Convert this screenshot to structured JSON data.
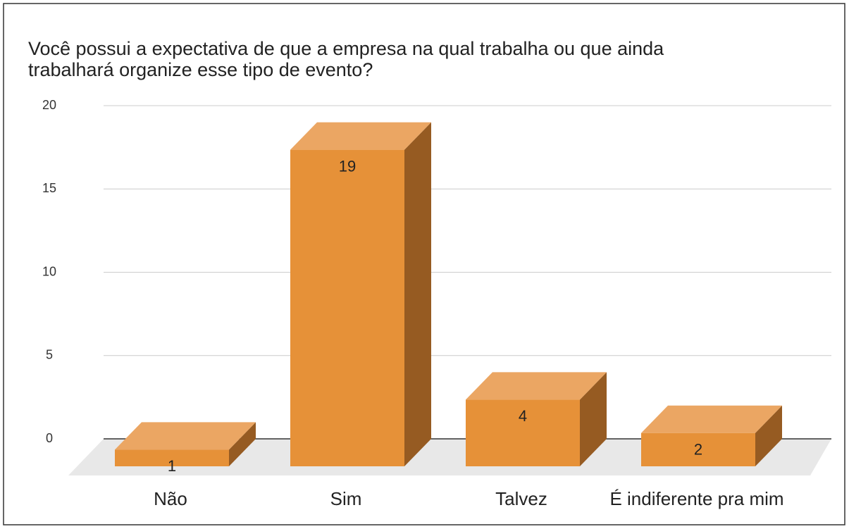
{
  "chart_data": {
    "type": "bar3d",
    "title": [
      "Você possui a expectativa de que a empresa na qual trabalha ou que ainda",
      "trabalhará organize esse tipo de evento?"
    ],
    "categories": [
      "Não",
      "Sim",
      "Talvez",
      "É indiferente pra mim"
    ],
    "values": [
      1,
      19,
      4,
      2
    ],
    "color": "#e69138",
    "ylim": [
      0,
      20
    ],
    "yticks": [
      0,
      5,
      10,
      15,
      20
    ],
    "grid": true
  }
}
